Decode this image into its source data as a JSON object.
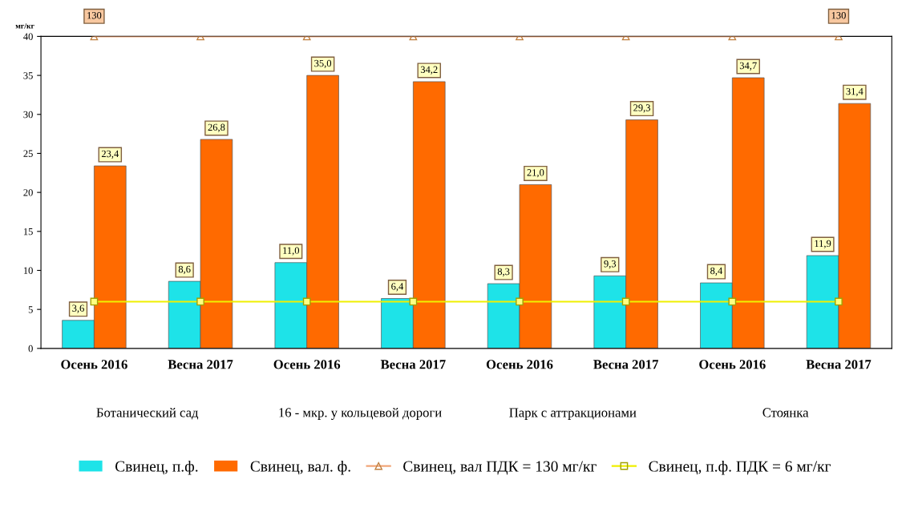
{
  "chart_data": {
    "type": "bar",
    "ylabel": "мг/кг",
    "categories": [
      "Осень 2016",
      "Весна 2017",
      "Осень 2016",
      "Весна 2017",
      "Осень 2016",
      "Весна 2017",
      "Осень 2016",
      "Весна 2017"
    ],
    "series": [
      {
        "name": "Свинец, п.ф.",
        "color": "#1ee3e8",
        "values": [
          3.6,
          8.6,
          11.0,
          6.4,
          8.3,
          9.3,
          8.4,
          11.9
        ],
        "value_labels": [
          "3,6",
          "8,6",
          "11,0",
          "6,4",
          "8,3",
          "9,3",
          "8,4",
          "11,9"
        ]
      },
      {
        "name": "Свинец, вал. ф.",
        "color": "#ff6a00",
        "values": [
          23.4,
          26.8,
          35.0,
          34.2,
          21.0,
          29.3,
          34.7,
          31.4
        ],
        "value_labels": [
          "23,4",
          "26,8",
          "35,0",
          "34,2",
          "21,0",
          "29,3",
          "34,7",
          "31,4"
        ]
      },
      {
        "name": "Свинец, вал ПДК = 130 мг/кг",
        "type": "line",
        "color": "#f0a070",
        "marker": "triangle",
        "values": [
          40,
          40,
          40,
          40,
          40,
          40,
          40,
          40
        ]
      },
      {
        "name": "Свинец, п.ф. ПДК = 6 мг/кг",
        "type": "line",
        "color": "#f0f000",
        "marker": "square",
        "values": [
          6,
          6,
          6,
          6,
          6,
          6,
          6,
          6
        ]
      }
    ],
    "annotations": [
      "Ботанический сад",
      "16 - мкр. у кольцевой дороги",
      "Парк с аттракционами",
      "Стоянка",
      "130",
      "130"
    ],
    "ylim": [
      0,
      40
    ],
    "yticks": [
      0,
      5,
      10,
      15,
      20,
      25,
      30,
      35,
      40
    ],
    "grid": false,
    "legend": "bottom"
  }
}
